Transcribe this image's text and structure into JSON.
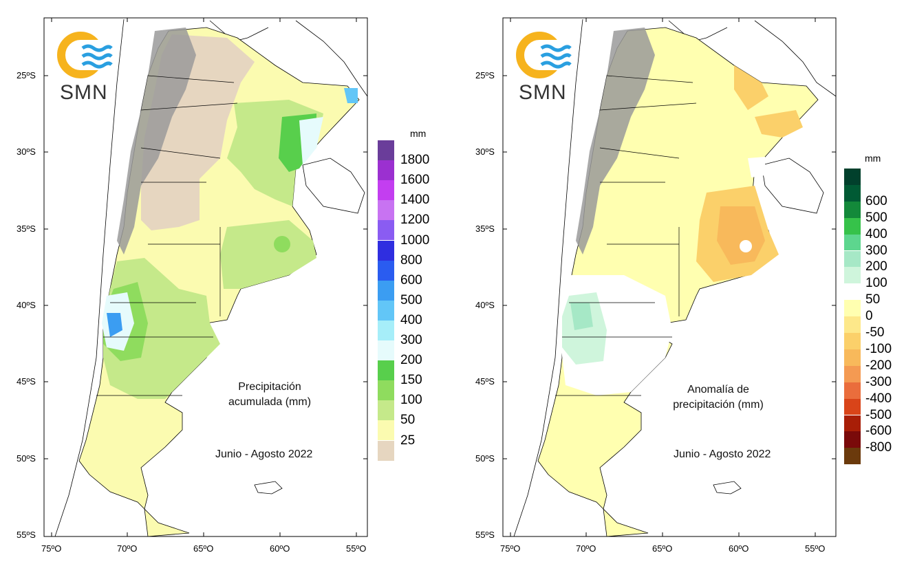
{
  "maps": [
    {
      "id": "precip",
      "title_line1": "Precipitación",
      "title_line2": "acumulada (mm)",
      "period": "Junio - Agosto 2022",
      "logo_text": "SMN",
      "legend_unit": "mm",
      "legend": [
        {
          "label": "1800",
          "color": "#6a3d9a"
        },
        {
          "label": "1600",
          "color": "#9b30d0"
        },
        {
          "label": "1400",
          "color": "#c33ef0"
        },
        {
          "label": "1200",
          "color": "#c873f2"
        },
        {
          "label": "1000",
          "color": "#8a5cf2"
        },
        {
          "label": "800",
          "color": "#2f2ee0"
        },
        {
          "label": "600",
          "color": "#2a5cf0"
        },
        {
          "label": "500",
          "color": "#3b9df2"
        },
        {
          "label": "400",
          "color": "#62c6f7"
        },
        {
          "label": "300",
          "color": "#a6eef9"
        },
        {
          "label": "200",
          "color": "#e6fbfc"
        },
        {
          "label": "150",
          "color": "#58cf4c"
        },
        {
          "label": "100",
          "color": "#8fdc5e"
        },
        {
          "label": "50",
          "color": "#c5e98a"
        },
        {
          "label": "25",
          "color": "#fbfbb0"
        },
        {
          "label": "",
          "color": "#e6d6c0"
        }
      ]
    },
    {
      "id": "anomaly",
      "title_line1": "Anomalía de",
      "title_line2": "precipitación (mm)",
      "period": "Junio - Agosto 2022",
      "logo_text": "SMN",
      "legend_unit": "mm",
      "legend": [
        {
          "label": "",
          "color": "#01402c"
        },
        {
          "label": "600",
          "color": "#005a34"
        },
        {
          "label": "500",
          "color": "#13893a"
        },
        {
          "label": "400",
          "color": "#36c24a"
        },
        {
          "label": "300",
          "color": "#5dd68e"
        },
        {
          "label": "200",
          "color": "#a6e8c6"
        },
        {
          "label": "100",
          "color": "#cff5dc"
        },
        {
          "label": "50",
          "color": "#ffffff"
        },
        {
          "label": "0",
          "color": "#ffffb0"
        },
        {
          "label": "-50",
          "color": "#fde88a"
        },
        {
          "label": "-100",
          "color": "#fbd06a"
        },
        {
          "label": "-200",
          "color": "#f8b95b"
        },
        {
          "label": "-300",
          "color": "#f49a52"
        },
        {
          "label": "-400",
          "color": "#ea6d3c"
        },
        {
          "label": "-500",
          "color": "#d94419"
        },
        {
          "label": "-600",
          "color": "#a81e07"
        },
        {
          "label": "-800",
          "color": "#7a0a0a"
        },
        {
          "label": "",
          "color": "#6b3a0c"
        }
      ]
    }
  ],
  "axes": {
    "lat_ticks": [
      "25ºS",
      "30ºS",
      "35ºS",
      "40ºS",
      "45ºS",
      "50ºS",
      "55ºS"
    ],
    "lon_ticks": [
      "75ºO",
      "70ºO",
      "65ºO",
      "60ºO",
      "55ºO"
    ]
  },
  "colors": {
    "logo_ring": "#f6b31d",
    "logo_waves": "#2a9fe0",
    "andes_gray": "#9a9a9a"
  }
}
